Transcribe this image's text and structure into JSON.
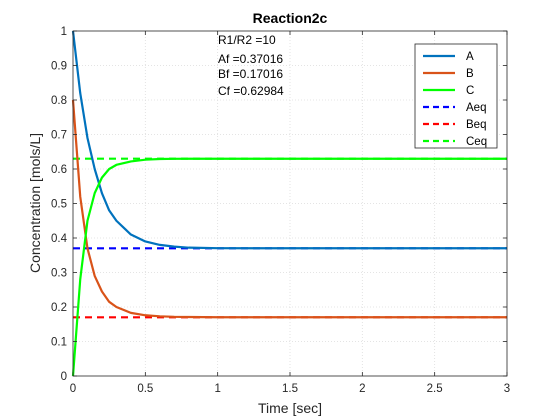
{
  "chart_data": {
    "type": "line",
    "title": "Reaction2c",
    "xlabel": "Time [sec]",
    "ylabel": "Concentration [mols/L]",
    "xlim": [
      0,
      3
    ],
    "ylim": [
      0,
      1
    ],
    "xticks": [
      "0",
      "0.5",
      "1",
      "1.5",
      "2",
      "2.5",
      "3"
    ],
    "yticks": [
      "0",
      "0.1",
      "0.2",
      "0.3",
      "0.4",
      "0.5",
      "0.6",
      "0.7",
      "0.8",
      "0.9",
      "1"
    ],
    "grid": true,
    "legend_position": "top-right",
    "annotations": [
      "R1/R2 =10",
      "Af =0.37016",
      "Bf =0.17016",
      "Cf =0.62984"
    ],
    "x": [
      0,
      0.05,
      0.1,
      0.15,
      0.2,
      0.25,
      0.3,
      0.4,
      0.5,
      0.6,
      0.7,
      0.8,
      1.0,
      1.5,
      2.0,
      2.5,
      3.0
    ],
    "series": [
      {
        "name": "A",
        "color": "#0072BD",
        "style": "solid",
        "values": [
          1.0,
          0.82,
          0.69,
          0.6,
          0.53,
          0.48,
          0.45,
          0.41,
          0.39,
          0.38,
          0.375,
          0.372,
          0.3705,
          0.3702,
          0.3702,
          0.3702,
          0.3702
        ]
      },
      {
        "name": "B",
        "color": "#D95319",
        "style": "solid",
        "values": [
          0.8,
          0.52,
          0.37,
          0.29,
          0.245,
          0.215,
          0.2,
          0.183,
          0.176,
          0.173,
          0.1715,
          0.171,
          0.1703,
          0.1702,
          0.1702,
          0.1702,
          0.1702
        ]
      },
      {
        "name": "C",
        "color": "#00FF00",
        "style": "solid",
        "values": [
          0.0,
          0.28,
          0.45,
          0.53,
          0.575,
          0.6,
          0.612,
          0.622,
          0.627,
          0.629,
          0.6295,
          0.6298,
          0.6298,
          0.6298,
          0.6298,
          0.6298,
          0.6298
        ]
      },
      {
        "name": "Aeq",
        "color": "#0000FF",
        "style": "dashed",
        "values": [
          0.37016,
          0.37016,
          0.37016,
          0.37016,
          0.37016,
          0.37016,
          0.37016,
          0.37016,
          0.37016,
          0.37016,
          0.37016,
          0.37016,
          0.37016,
          0.37016,
          0.37016,
          0.37016,
          0.37016
        ]
      },
      {
        "name": "Beq",
        "color": "#FF0000",
        "style": "dashed",
        "values": [
          0.17016,
          0.17016,
          0.17016,
          0.17016,
          0.17016,
          0.17016,
          0.17016,
          0.17016,
          0.17016,
          0.17016,
          0.17016,
          0.17016,
          0.17016,
          0.17016,
          0.17016,
          0.17016,
          0.17016
        ]
      },
      {
        "name": "Ceq",
        "color": "#00FF00",
        "style": "dashed",
        "values": [
          0.62984,
          0.62984,
          0.62984,
          0.62984,
          0.62984,
          0.62984,
          0.62984,
          0.62984,
          0.62984,
          0.62984,
          0.62984,
          0.62984,
          0.62984,
          0.62984,
          0.62984,
          0.62984,
          0.62984
        ]
      }
    ]
  }
}
